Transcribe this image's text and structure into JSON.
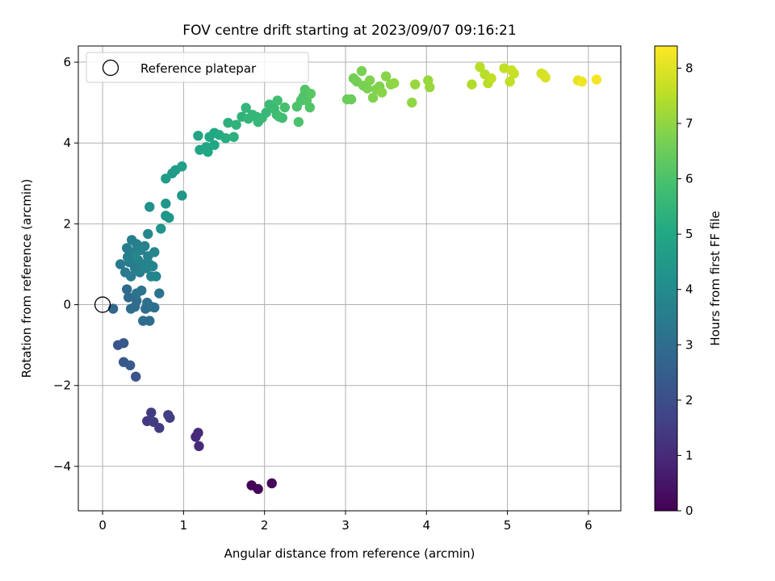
{
  "chart_data": {
    "type": "scatter",
    "title": "FOV centre drift starting at 2023/09/07 09:16:21",
    "xlabel": "Angular distance from reference (arcmin)",
    "ylabel": "Rotation from reference (arcmin)",
    "xlim": [
      -0.3,
      6.4
    ],
    "ylim": [
      -5.1,
      6.4
    ],
    "xticks": [
      0,
      1,
      2,
      3,
      4,
      5,
      6
    ],
    "yticks": [
      -4,
      -2,
      0,
      2,
      4,
      6
    ],
    "grid": true,
    "legend": {
      "placement": "top-left",
      "entries": [
        "Reference platepar"
      ]
    },
    "reference_point": {
      "name": "Reference platepar",
      "x": 0,
      "y": 0,
      "marker": "hollow-circle"
    },
    "colorbar": {
      "label": "Hours from first FF file",
      "range": [
        0,
        8.4
      ],
      "ticks": [
        0,
        1,
        2,
        3,
        4,
        5,
        6,
        7,
        8
      ],
      "colormap": "viridis"
    },
    "series": [
      {
        "color_by": "hours",
        "points": [
          {
            "x": 1.84,
            "y": -4.47,
            "c": 0.1
          },
          {
            "x": 1.92,
            "y": -4.56,
            "c": 0.15
          },
          {
            "x": 2.09,
            "y": -4.42,
            "c": 0.2
          },
          {
            "x": 1.15,
            "y": -3.27,
            "c": 1.0
          },
          {
            "x": 1.18,
            "y": -3.17,
            "c": 1.02
          },
          {
            "x": 1.19,
            "y": -3.5,
            "c": 1.05
          },
          {
            "x": 0.55,
            "y": -2.88,
            "c": 1.4
          },
          {
            "x": 0.6,
            "y": -2.67,
            "c": 1.45
          },
          {
            "x": 0.63,
            "y": -2.9,
            "c": 1.5
          },
          {
            "x": 0.7,
            "y": -3.05,
            "c": 1.45
          },
          {
            "x": 0.81,
            "y": -2.73,
            "c": 1.55
          },
          {
            "x": 0.83,
            "y": -2.8,
            "c": 1.55
          },
          {
            "x": 0.19,
            "y": -1.0,
            "c": 2.2
          },
          {
            "x": 0.26,
            "y": -0.95,
            "c": 2.3
          },
          {
            "x": 0.26,
            "y": -1.42,
            "c": 2.3
          },
          {
            "x": 0.34,
            "y": -1.5,
            "c": 2.35
          },
          {
            "x": 0.41,
            "y": -1.78,
            "c": 2.2
          },
          {
            "x": 0.13,
            "y": -0.1,
            "c": 2.8
          },
          {
            "x": 0.3,
            "y": 0.38,
            "c": 2.9
          },
          {
            "x": 0.32,
            "y": 0.18,
            "c": 2.9
          },
          {
            "x": 0.35,
            "y": -0.1,
            "c": 3.0
          },
          {
            "x": 0.4,
            "y": -0.05,
            "c": 3.0
          },
          {
            "x": 0.42,
            "y": 0.1,
            "c": 3.0
          },
          {
            "x": 0.5,
            "y": -0.4,
            "c": 3.0
          },
          {
            "x": 0.53,
            "y": -0.1,
            "c": 3.0
          },
          {
            "x": 0.58,
            "y": -0.4,
            "c": 3.0
          },
          {
            "x": 0.55,
            "y": 0.05,
            "c": 3.1
          },
          {
            "x": 0.6,
            "y": -0.05,
            "c": 3.1
          },
          {
            "x": 0.64,
            "y": -0.07,
            "c": 3.1
          },
          {
            "x": 0.48,
            "y": 0.35,
            "c": 3.2
          },
          {
            "x": 0.7,
            "y": 0.28,
            "c": 3.2
          },
          {
            "x": 0.42,
            "y": 0.28,
            "c": 3.2
          },
          {
            "x": 0.22,
            "y": 1.0,
            "c": 3.4
          },
          {
            "x": 0.28,
            "y": 0.8,
            "c": 3.4
          },
          {
            "x": 0.3,
            "y": 1.4,
            "c": 3.5
          },
          {
            "x": 0.33,
            "y": 1.05,
            "c": 3.5
          },
          {
            "x": 0.35,
            "y": 0.7,
            "c": 3.5
          },
          {
            "x": 0.36,
            "y": 1.6,
            "c": 3.6
          },
          {
            "x": 0.38,
            "y": 1.3,
            "c": 3.6
          },
          {
            "x": 0.4,
            "y": 0.9,
            "c": 3.5
          },
          {
            "x": 0.42,
            "y": 1.5,
            "c": 3.6
          },
          {
            "x": 0.44,
            "y": 1.1,
            "c": 3.6
          },
          {
            "x": 0.46,
            "y": 0.8,
            "c": 3.6
          },
          {
            "x": 0.47,
            "y": 1.35,
            "c": 3.7
          },
          {
            "x": 0.5,
            "y": 1.0,
            "c": 3.7
          },
          {
            "x": 0.52,
            "y": 1.45,
            "c": 3.7
          },
          {
            "x": 0.54,
            "y": 0.9,
            "c": 3.7
          },
          {
            "x": 0.56,
            "y": 1.2,
            "c": 3.7
          },
          {
            "x": 0.58,
            "y": 1.0,
            "c": 3.8
          },
          {
            "x": 0.6,
            "y": 0.7,
            "c": 3.8
          },
          {
            "x": 0.62,
            "y": 0.95,
            "c": 3.8
          },
          {
            "x": 0.64,
            "y": 1.3,
            "c": 3.8
          },
          {
            "x": 0.66,
            "y": 0.7,
            "c": 3.8
          },
          {
            "x": 0.56,
            "y": 1.75,
            "c": 3.9
          },
          {
            "x": 0.4,
            "y": 1.2,
            "c": 3.9
          },
          {
            "x": 0.31,
            "y": 1.18,
            "c": 3.6
          },
          {
            "x": 0.58,
            "y": 2.42,
            "c": 4.2
          },
          {
            "x": 0.72,
            "y": 1.88,
            "c": 4.3
          },
          {
            "x": 0.78,
            "y": 2.2,
            "c": 4.3
          },
          {
            "x": 0.78,
            "y": 2.5,
            "c": 4.4
          },
          {
            "x": 0.82,
            "y": 2.15,
            "c": 4.4
          },
          {
            "x": 0.98,
            "y": 2.7,
            "c": 4.4
          },
          {
            "x": 0.78,
            "y": 3.12,
            "c": 4.6
          },
          {
            "x": 0.86,
            "y": 3.25,
            "c": 4.6
          },
          {
            "x": 0.9,
            "y": 3.33,
            "c": 4.6
          },
          {
            "x": 0.98,
            "y": 3.42,
            "c": 4.7
          },
          {
            "x": 1.18,
            "y": 4.18,
            "c": 4.9
          },
          {
            "x": 1.2,
            "y": 3.83,
            "c": 4.9
          },
          {
            "x": 1.28,
            "y": 3.9,
            "c": 5.0
          },
          {
            "x": 1.3,
            "y": 3.78,
            "c": 5.0
          },
          {
            "x": 1.32,
            "y": 4.15,
            "c": 5.0
          },
          {
            "x": 1.38,
            "y": 4.25,
            "c": 5.0
          },
          {
            "x": 1.38,
            "y": 3.95,
            "c": 5.0
          },
          {
            "x": 1.44,
            "y": 4.2,
            "c": 5.1
          },
          {
            "x": 1.52,
            "y": 4.12,
            "c": 5.2
          },
          {
            "x": 1.55,
            "y": 4.5,
            "c": 5.3
          },
          {
            "x": 1.62,
            "y": 4.15,
            "c": 5.3
          },
          {
            "x": 1.65,
            "y": 4.45,
            "c": 5.4
          },
          {
            "x": 1.72,
            "y": 4.65,
            "c": 5.4
          },
          {
            "x": 1.77,
            "y": 4.87,
            "c": 5.5
          },
          {
            "x": 1.8,
            "y": 4.6,
            "c": 5.5
          },
          {
            "x": 1.85,
            "y": 4.7,
            "c": 5.5
          },
          {
            "x": 1.9,
            "y": 4.65,
            "c": 5.5
          },
          {
            "x": 1.92,
            "y": 4.52,
            "c": 5.6
          },
          {
            "x": 1.97,
            "y": 4.62,
            "c": 5.6
          },
          {
            "x": 2.02,
            "y": 4.75,
            "c": 5.6
          },
          {
            "x": 2.06,
            "y": 4.95,
            "c": 5.7
          },
          {
            "x": 2.12,
            "y": 4.85,
            "c": 5.7
          },
          {
            "x": 2.15,
            "y": 4.7,
            "c": 5.7
          },
          {
            "x": 2.16,
            "y": 5.05,
            "c": 5.8
          },
          {
            "x": 2.18,
            "y": 4.65,
            "c": 5.8
          },
          {
            "x": 2.22,
            "y": 4.62,
            "c": 5.8
          },
          {
            "x": 2.25,
            "y": 4.88,
            "c": 5.9
          },
          {
            "x": 2.4,
            "y": 4.9,
            "c": 6.0
          },
          {
            "x": 2.42,
            "y": 4.52,
            "c": 6.0
          },
          {
            "x": 2.45,
            "y": 5.05,
            "c": 6.0
          },
          {
            "x": 2.48,
            "y": 5.15,
            "c": 6.0
          },
          {
            "x": 2.5,
            "y": 5.32,
            "c": 6.1
          },
          {
            "x": 2.52,
            "y": 5.05,
            "c": 6.1
          },
          {
            "x": 2.56,
            "y": 4.88,
            "c": 6.1
          },
          {
            "x": 2.57,
            "y": 5.22,
            "c": 6.2
          },
          {
            "x": 3.02,
            "y": 5.08,
            "c": 6.5
          },
          {
            "x": 3.07,
            "y": 5.08,
            "c": 6.5
          },
          {
            "x": 3.1,
            "y": 5.6,
            "c": 6.6
          },
          {
            "x": 3.14,
            "y": 5.52,
            "c": 6.6
          },
          {
            "x": 3.2,
            "y": 5.78,
            "c": 6.7
          },
          {
            "x": 3.22,
            "y": 5.42,
            "c": 6.7
          },
          {
            "x": 3.27,
            "y": 5.35,
            "c": 6.7
          },
          {
            "x": 3.3,
            "y": 5.55,
            "c": 6.8
          },
          {
            "x": 3.34,
            "y": 5.12,
            "c": 6.8
          },
          {
            "x": 3.38,
            "y": 5.33,
            "c": 6.8
          },
          {
            "x": 3.42,
            "y": 5.4,
            "c": 6.8
          },
          {
            "x": 3.45,
            "y": 5.25,
            "c": 6.9
          },
          {
            "x": 3.5,
            "y": 5.65,
            "c": 6.9
          },
          {
            "x": 3.56,
            "y": 5.45,
            "c": 6.9
          },
          {
            "x": 3.6,
            "y": 5.48,
            "c": 7.0
          },
          {
            "x": 3.82,
            "y": 5.0,
            "c": 7.0
          },
          {
            "x": 3.86,
            "y": 5.45,
            "c": 7.1
          },
          {
            "x": 4.02,
            "y": 5.55,
            "c": 7.1
          },
          {
            "x": 4.04,
            "y": 5.38,
            "c": 7.1
          },
          {
            "x": 4.56,
            "y": 5.45,
            "c": 7.4
          },
          {
            "x": 4.66,
            "y": 5.88,
            "c": 7.5
          },
          {
            "x": 4.72,
            "y": 5.7,
            "c": 7.5
          },
          {
            "x": 4.76,
            "y": 5.48,
            "c": 7.5
          },
          {
            "x": 4.8,
            "y": 5.6,
            "c": 7.6
          },
          {
            "x": 4.96,
            "y": 5.85,
            "c": 7.6
          },
          {
            "x": 5.03,
            "y": 5.52,
            "c": 7.6
          },
          {
            "x": 5.05,
            "y": 5.8,
            "c": 7.7
          },
          {
            "x": 5.08,
            "y": 5.72,
            "c": 7.7
          },
          {
            "x": 5.42,
            "y": 5.72,
            "c": 7.8
          },
          {
            "x": 5.44,
            "y": 5.7,
            "c": 7.9
          },
          {
            "x": 5.47,
            "y": 5.62,
            "c": 7.9
          },
          {
            "x": 5.87,
            "y": 5.55,
            "c": 8.1
          },
          {
            "x": 5.92,
            "y": 5.52,
            "c": 8.2
          },
          {
            "x": 6.1,
            "y": 5.57,
            "c": 8.3
          }
        ]
      }
    ]
  }
}
